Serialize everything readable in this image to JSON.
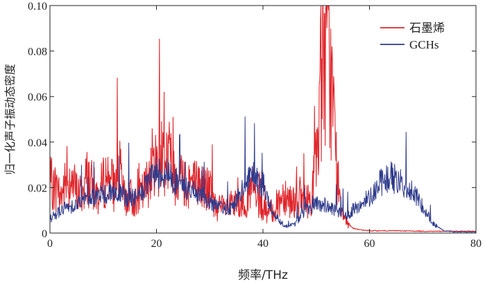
{
  "chart_data": {
    "type": "line",
    "title": "",
    "xlabel": "频率/THz",
    "ylabel": "归一化声子振动态密度",
    "xlim": [
      0,
      80
    ],
    "ylim": [
      0,
      0.1
    ],
    "xticks": [
      "0",
      "20",
      "40",
      "60",
      "80"
    ],
    "yticks": [
      "0",
      "0.02",
      "0.04",
      "0.06",
      "0.08",
      "0.10"
    ],
    "grid": false,
    "legend_position": "top-right",
    "series": [
      {
        "name": "石墨烯",
        "color": "#e0262b",
        "x": [
          0,
          1,
          2,
          3,
          4,
          5,
          6,
          7,
          8,
          9,
          10,
          11,
          12,
          13,
          14,
          15,
          16,
          17,
          18,
          19,
          20,
          21,
          22,
          23,
          24,
          25,
          26,
          27,
          28,
          29,
          30,
          31,
          32,
          33,
          34,
          35,
          36,
          37,
          38,
          39,
          40,
          41,
          42,
          43,
          44,
          45,
          46,
          47,
          48,
          49,
          50,
          51,
          52,
          53,
          54,
          55,
          56,
          57,
          58,
          60,
          65,
          70,
          75,
          80
        ],
        "y": [
          0.022,
          0.02,
          0.016,
          0.022,
          0.024,
          0.018,
          0.017,
          0.025,
          0.02,
          0.016,
          0.022,
          0.026,
          0.02,
          0.028,
          0.015,
          0.016,
          0.014,
          0.016,
          0.02,
          0.03,
          0.03,
          0.036,
          0.035,
          0.028,
          0.026,
          0.024,
          0.023,
          0.022,
          0.021,
          0.02,
          0.019,
          0.012,
          0.011,
          0.011,
          0.012,
          0.012,
          0.013,
          0.015,
          0.02,
          0.014,
          0.01,
          0.009,
          0.01,
          0.014,
          0.018,
          0.015,
          0.014,
          0.016,
          0.014,
          0.015,
          0.032,
          0.07,
          0.083,
          0.062,
          0.022,
          0.01,
          0.004,
          0.002,
          0.0015,
          0.001,
          0.001,
          0.0008,
          0.0008,
          0.0008
        ]
      },
      {
        "name": "GCHs",
        "color": "#2e3a8c",
        "x": [
          0,
          2,
          4,
          6,
          8,
          10,
          12,
          14,
          16,
          18,
          20,
          22,
          24,
          26,
          28,
          30,
          32,
          34,
          36,
          38,
          40,
          42,
          44,
          46,
          48,
          50,
          52,
          54,
          56,
          58,
          60,
          62,
          64,
          66,
          68,
          70,
          72,
          74,
          76,
          78,
          80
        ],
        "y": [
          0.006,
          0.01,
          0.012,
          0.014,
          0.016,
          0.017,
          0.018,
          0.016,
          0.015,
          0.02,
          0.027,
          0.026,
          0.022,
          0.019,
          0.017,
          0.014,
          0.011,
          0.011,
          0.018,
          0.025,
          0.019,
          0.009,
          0.003,
          0.004,
          0.01,
          0.013,
          0.012,
          0.009,
          0.008,
          0.012,
          0.016,
          0.022,
          0.025,
          0.022,
          0.018,
          0.012,
          0.004,
          0.001,
          0.0005,
          0.0005,
          0.0005
        ]
      }
    ]
  }
}
